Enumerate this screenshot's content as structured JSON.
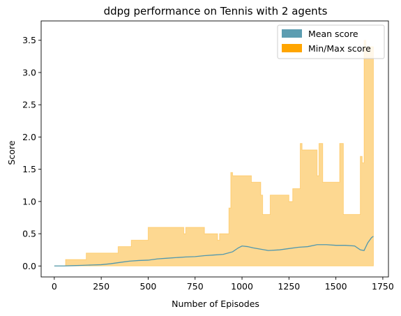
{
  "chart_data": {
    "type": "area",
    "title": "ddpg performance on Tennis with 2 agents",
    "xlabel": "Number of Episodes",
    "ylabel": "Score",
    "xlim": [
      -70,
      1780
    ],
    "ylim": [
      -0.17,
      3.8
    ],
    "x_ticks": [
      0,
      250,
      500,
      750,
      1000,
      1250,
      1500,
      1750
    ],
    "y_ticks": [
      0.0,
      0.5,
      1.0,
      1.5,
      2.0,
      2.5,
      3.0,
      3.5
    ],
    "x_tick_labels": [
      "0",
      "250",
      "500",
      "750",
      "1000",
      "1250",
      "1500",
      "1750"
    ],
    "y_tick_labels": [
      "0.0",
      "0.5",
      "1.0",
      "1.5",
      "2.0",
      "2.5",
      "3.0",
      "3.5"
    ],
    "grid": false,
    "legend_position": "top-right",
    "colors": {
      "mean": "#4f97ae",
      "minmax_fill": "#fdd891",
      "minmax_edge": "#ffa500",
      "legend_mean": "#5c9db1",
      "legend_minmax": "#ffa500"
    },
    "series": [
      {
        "name": "Mean score",
        "x": [
          0,
          50,
          100,
          150,
          200,
          250,
          300,
          350,
          400,
          450,
          500,
          550,
          600,
          650,
          700,
          750,
          800,
          850,
          900,
          950,
          980,
          1000,
          1030,
          1060,
          1100,
          1140,
          1200,
          1250,
          1300,
          1350,
          1400,
          1450,
          1500,
          1550,
          1600,
          1630,
          1650,
          1670,
          1690,
          1700
        ],
        "values": [
          0.0,
          0.0,
          0.005,
          0.01,
          0.015,
          0.02,
          0.035,
          0.055,
          0.075,
          0.085,
          0.09,
          0.11,
          0.12,
          0.13,
          0.14,
          0.145,
          0.16,
          0.17,
          0.18,
          0.22,
          0.28,
          0.31,
          0.3,
          0.28,
          0.26,
          0.24,
          0.25,
          0.27,
          0.29,
          0.3,
          0.33,
          0.33,
          0.32,
          0.32,
          0.31,
          0.25,
          0.24,
          0.36,
          0.44,
          0.46
        ]
      },
      {
        "name": "Min/Max score",
        "x": [
          0,
          60,
          60,
          170,
          170,
          340,
          340,
          410,
          410,
          500,
          500,
          690,
          690,
          700,
          700,
          800,
          800,
          870,
          870,
          880,
          880,
          930,
          930,
          940,
          940,
          950,
          950,
          960,
          960,
          1050,
          1050,
          1100,
          1100,
          1110,
          1110,
          1150,
          1150,
          1250,
          1250,
          1270,
          1270,
          1310,
          1310,
          1320,
          1320,
          1400,
          1400,
          1410,
          1410,
          1430,
          1430,
          1520,
          1520,
          1530,
          1530,
          1540,
          1540,
          1630,
          1630,
          1640,
          1640,
          1650,
          1650,
          1660,
          1660,
          1700
        ],
        "min": [
          0,
          0,
          0,
          0,
          0,
          0,
          0,
          0,
          0,
          0,
          0,
          0,
          0,
          0,
          0,
          0,
          0,
          0,
          0,
          0,
          0,
          0,
          0,
          0,
          0,
          0,
          0,
          0,
          0,
          0,
          0,
          0,
          0,
          0,
          0,
          0,
          0,
          0,
          0,
          0,
          0,
          0,
          0,
          0,
          0,
          0,
          0,
          0,
          0,
          0,
          0,
          0,
          0,
          0,
          0,
          0,
          0,
          0,
          0,
          0,
          0,
          0,
          0,
          0,
          0,
          0
        ],
        "max": [
          0,
          0,
          0.1,
          0.1,
          0.2,
          0.2,
          0.3,
          0.3,
          0.4,
          0.4,
          0.6,
          0.6,
          0.5,
          0.5,
          0.6,
          0.6,
          0.5,
          0.5,
          0.4,
          0.4,
          0.5,
          0.5,
          0.9,
          0.9,
          1.45,
          1.45,
          1.4,
          1.4,
          1.4,
          1.4,
          1.3,
          1.3,
          1.1,
          1.1,
          0.8,
          0.8,
          1.1,
          1.1,
          1.0,
          1.0,
          1.2,
          1.2,
          1.9,
          1.9,
          1.8,
          1.8,
          1.4,
          1.4,
          1.9,
          1.9,
          1.3,
          1.3,
          1.9,
          1.9,
          1.9,
          1.9,
          0.8,
          0.8,
          1.7,
          1.7,
          1.6,
          1.6,
          3.5,
          3.5,
          3.4,
          3.4
        ]
      }
    ]
  }
}
